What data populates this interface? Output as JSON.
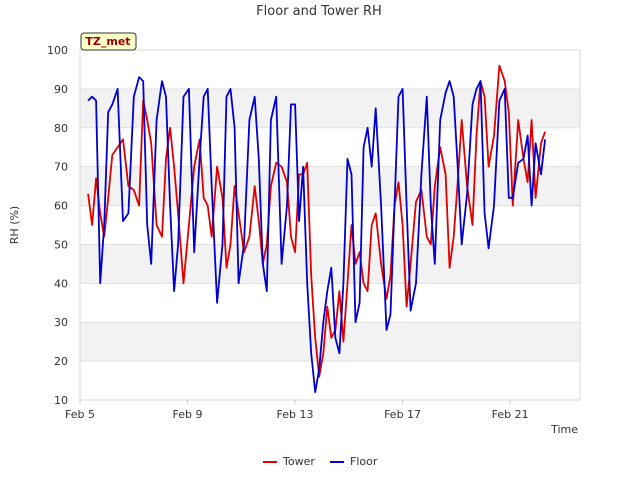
{
  "chart_data": {
    "type": "line",
    "title": "Floor and Tower RH",
    "xlabel": "Time",
    "ylabel": "RH (%)",
    "badge": "TZ_met",
    "xlim": [
      5.0,
      23.6
    ],
    "ylim": [
      10,
      100
    ],
    "x_ticks": [
      5,
      9,
      13,
      17,
      21
    ],
    "x_tick_labels": [
      "Feb 5",
      "Feb 9",
      "Feb 13",
      "Feb 17",
      "Feb 21"
    ],
    "y_ticks": [
      10,
      20,
      30,
      40,
      50,
      60,
      70,
      80,
      90,
      100
    ],
    "y_tick_labels": [
      "10",
      "20",
      "30",
      "40",
      "50",
      "60",
      "70",
      "80",
      "90",
      "100"
    ],
    "grid_bands": true,
    "legend_position": "bottom-center",
    "series": [
      {
        "name": "Tower",
        "color": "#e00000",
        "x": [
          5.3,
          5.45,
          5.6,
          5.75,
          5.9,
          6.05,
          6.2,
          6.4,
          6.6,
          6.8,
          7.0,
          7.2,
          7.35,
          7.5,
          7.65,
          7.85,
          8.05,
          8.2,
          8.35,
          8.5,
          8.65,
          8.85,
          9.05,
          9.25,
          9.45,
          9.6,
          9.75,
          9.9,
          10.1,
          10.3,
          10.45,
          10.6,
          10.75,
          10.9,
          11.1,
          11.3,
          11.5,
          11.65,
          11.8,
          11.95,
          12.1,
          12.3,
          12.5,
          12.7,
          12.85,
          13.0,
          13.15,
          13.3,
          13.45,
          13.6,
          13.75,
          13.9,
          14.05,
          14.2,
          14.35,
          14.5,
          14.65,
          14.8,
          14.95,
          15.1,
          15.25,
          15.4,
          15.55,
          15.7,
          15.85,
          16.0,
          16.2,
          16.4,
          16.55,
          16.7,
          16.85,
          17.0,
          17.15,
          17.3,
          17.5,
          17.7,
          17.9,
          18.05,
          18.2,
          18.4,
          18.6,
          18.75,
          18.9,
          19.05,
          19.2,
          19.4,
          19.6,
          19.75,
          19.9,
          20.05,
          20.2,
          20.4,
          20.6,
          20.8,
          20.95,
          21.1,
          21.3,
          21.5,
          21.65,
          21.8,
          21.95,
          22.15,
          22.3
        ],
        "y": [
          63,
          55,
          67,
          58,
          52,
          62,
          73,
          75,
          77,
          65,
          64,
          60,
          87,
          82,
          76,
          55,
          52,
          72,
          80,
          70,
          58,
          40,
          55,
          70,
          77,
          62,
          60,
          52,
          70,
          62,
          44,
          50,
          65,
          58,
          48,
          52,
          65,
          56,
          45,
          50,
          65,
          71,
          70,
          66,
          52,
          48,
          68,
          68,
          71,
          42,
          26,
          16,
          22,
          34,
          26,
          28,
          38,
          25,
          40,
          55,
          45,
          48,
          40,
          38,
          55,
          58,
          45,
          36,
          42,
          60,
          66,
          55,
          34,
          45,
          61,
          64,
          52,
          50,
          65,
          75,
          68,
          44,
          52,
          66,
          82,
          65,
          55,
          78,
          92,
          88,
          70,
          78,
          96,
          92,
          84,
          60,
          82,
          72,
          66,
          82,
          62,
          76,
          79
        ]
      },
      {
        "name": "Floor",
        "color": "#0000d0",
        "x": [
          5.3,
          5.45,
          5.6,
          5.75,
          5.9,
          6.05,
          6.2,
          6.4,
          6.6,
          6.8,
          7.0,
          7.2,
          7.35,
          7.5,
          7.65,
          7.85,
          8.05,
          8.2,
          8.35,
          8.5,
          8.65,
          8.85,
          9.05,
          9.25,
          9.45,
          9.6,
          9.75,
          9.9,
          10.1,
          10.3,
          10.45,
          10.6,
          10.75,
          10.9,
          11.1,
          11.3,
          11.5,
          11.65,
          11.8,
          11.95,
          12.1,
          12.3,
          12.5,
          12.7,
          12.85,
          13.0,
          13.15,
          13.3,
          13.45,
          13.6,
          13.75,
          13.9,
          14.05,
          14.2,
          14.35,
          14.5,
          14.65,
          14.8,
          14.95,
          15.1,
          15.25,
          15.4,
          15.55,
          15.7,
          15.85,
          16.0,
          16.2,
          16.4,
          16.55,
          16.7,
          16.85,
          17.0,
          17.15,
          17.3,
          17.5,
          17.7,
          17.9,
          18.05,
          18.2,
          18.4,
          18.6,
          18.75,
          18.9,
          19.05,
          19.2,
          19.4,
          19.6,
          19.75,
          19.9,
          20.05,
          20.2,
          20.4,
          20.6,
          20.8,
          20.95,
          21.1,
          21.3,
          21.5,
          21.65,
          21.8,
          21.95,
          22.15,
          22.3
        ],
        "y": [
          87,
          88,
          87,
          40,
          55,
          84,
          86,
          90,
          56,
          58,
          88,
          93,
          92,
          55,
          45,
          82,
          92,
          88,
          60,
          38,
          50,
          88,
          90,
          48,
          72,
          88,
          90,
          65,
          35,
          50,
          88,
          90,
          80,
          40,
          50,
          82,
          88,
          72,
          45,
          38,
          82,
          88,
          45,
          60,
          86,
          86,
          56,
          70,
          40,
          22,
          12,
          18,
          30,
          38,
          44,
          26,
          22,
          40,
          72,
          68,
          30,
          35,
          75,
          80,
          70,
          85,
          60,
          28,
          32,
          60,
          88,
          90,
          60,
          33,
          40,
          68,
          88,
          60,
          45,
          82,
          89,
          92,
          88,
          70,
          50,
          63,
          86,
          90,
          92,
          58,
          49,
          60,
          87,
          90,
          62,
          62,
          71,
          72,
          78,
          60,
          76,
          68,
          77
        ]
      }
    ]
  }
}
